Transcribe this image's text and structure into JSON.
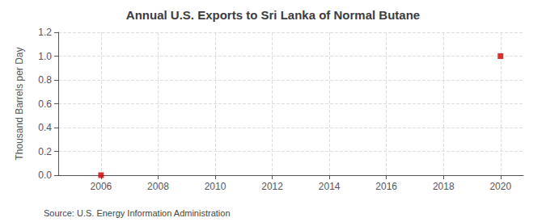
{
  "chart_data": {
    "type": "scatter",
    "title": "Annual U.S. Exports to Sri Lanka of Normal Butane",
    "ylabel": "Thousand Barrels per Day",
    "annotation": "Source: U.S. Energy Information Administration",
    "x": [
      2006,
      2020
    ],
    "values": [
      0.0,
      1.0
    ],
    "color": "#cc0000",
    "marker": "square",
    "xlim": [
      2004.5,
      2020.8
    ],
    "xticks": [
      2006,
      2008,
      2010,
      2012,
      2014,
      2016,
      2018,
      2020
    ],
    "ylim": [
      0.0,
      1.2
    ],
    "yticks": [
      {
        "value": 0.0,
        "label": "0.0"
      },
      0.2,
      0.4,
      0.6,
      0.8,
      {
        "value": 1.0,
        "label": "1.0"
      },
      1.2
    ],
    "grid": true
  }
}
